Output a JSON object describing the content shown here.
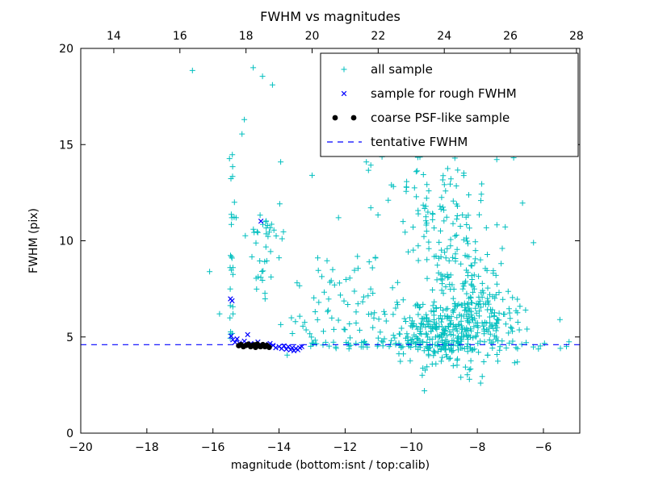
{
  "chart_data": {
    "type": "scatter",
    "title": "FWHM vs magnitudes",
    "xlabel": "magnitude (bottom:isnt / top:calib)",
    "ylabel": "FWHM (pix)",
    "xlim": [
      -20,
      -4.9
    ],
    "ylim": [
      0,
      20
    ],
    "x_ticks_bottom": [
      -20,
      -18,
      -16,
      -14,
      -12,
      -10,
      -8,
      -6
    ],
    "x_ticks_top": [
      14,
      16,
      18,
      20,
      22,
      24,
      26,
      28
    ],
    "calib_offset": 33,
    "y_ticks": [
      0,
      5,
      10,
      15,
      20
    ],
    "tentative_fwhm": 4.6,
    "legend_position": "upper right",
    "grid": false,
    "seed": 42,
    "colors": {
      "all_sample": "#00bfbf",
      "rough_fwhm": "#0000ff",
      "psf_like": "#000000",
      "tentative_line": "#0000ff",
      "frame": "#000000"
    },
    "series": [
      {
        "name": "all sample",
        "marker": "plus",
        "color": "#00bfbf",
        "clusters": [
          {
            "type": "gauss",
            "n": 240,
            "cx": -9.1,
            "sx": 0.85,
            "cy": 5.3,
            "sy": 0.7
          },
          {
            "type": "gauss",
            "n": 170,
            "cx": -8.2,
            "sx": 0.75,
            "cy": 6.3,
            "sy": 1.2
          },
          {
            "type": "gauss",
            "n": 90,
            "cx": -8.8,
            "sx": 0.8,
            "cy": 9.3,
            "sy": 1.6
          },
          {
            "type": "gauss",
            "n": 45,
            "cx": -9.2,
            "sx": 0.8,
            "cy": 12.3,
            "sy": 1.4
          },
          {
            "type": "gauss",
            "n": 22,
            "cx": -9.0,
            "sx": 1.0,
            "cy": 14.8,
            "sy": 1.1
          },
          {
            "type": "uniform",
            "n": 65,
            "x0": -13.4,
            "x1": -5.2,
            "y0": 4.35,
            "y1": 4.8
          },
          {
            "type": "uniform",
            "n": 16,
            "x0": -15.52,
            "x1": -15.38,
            "y0": 4.9,
            "y1": 9.6
          },
          {
            "type": "uniform",
            "n": 9,
            "x0": -15.5,
            "x1": -15.36,
            "y0": 9.8,
            "y1": 15.2
          },
          {
            "type": "gauss",
            "n": 28,
            "cx": -14.4,
            "sx": 0.28,
            "cy": 10.1,
            "sy": 0.9
          },
          {
            "type": "gauss",
            "n": 10,
            "cx": -14.55,
            "sx": 0.15,
            "cy": 8.3,
            "sy": 0.4
          },
          {
            "type": "uniform",
            "n": 55,
            "x0": -13.6,
            "x1": -10.4,
            "y0": 4.9,
            "y1": 9.2
          },
          {
            "type": "gauss",
            "n": 22,
            "cx": -12.6,
            "sx": 1.1,
            "cy": 6.1,
            "sy": 0.9
          },
          {
            "type": "gauss",
            "n": 24,
            "cx": -8.6,
            "sx": 1.1,
            "cy": 3.8,
            "sy": 0.5
          },
          {
            "type": "uniform",
            "n": 12,
            "x0": -10.2,
            "x1": -7.4,
            "y0": 15.2,
            "y1": 17.6
          },
          {
            "type": "uniform",
            "n": 8,
            "x0": -11.5,
            "x1": -9.0,
            "y0": 10.5,
            "y1": 14.5
          }
        ],
        "points": [
          [
            -16.62,
            18.85
          ],
          [
            -14.78,
            19.0
          ],
          [
            -14.5,
            18.55
          ],
          [
            -14.2,
            18.1
          ],
          [
            -13.95,
            14.1
          ],
          [
            -15.05,
            16.3
          ],
          [
            -15.12,
            15.55
          ],
          [
            -15.35,
            12.0
          ],
          [
            -15.3,
            11.2
          ],
          [
            -13.0,
            13.4
          ],
          [
            -11.4,
            16.0
          ],
          [
            -9.4,
            19.2
          ],
          [
            -8.9,
            18.6
          ],
          [
            -6.3,
            9.9
          ],
          [
            -5.5,
            5.9
          ],
          [
            -7.9,
            2.6
          ],
          [
            -8.5,
            2.9
          ],
          [
            -9.6,
            2.2
          ],
          [
            -16.1,
            8.4
          ],
          [
            -15.8,
            6.2
          ],
          [
            -10.6,
            12.9
          ],
          [
            -12.2,
            11.2
          ]
        ]
      },
      {
        "name": "sample for rough FWHM",
        "marker": "x",
        "color": "#0000ff",
        "points": [
          [
            -15.47,
            6.98
          ],
          [
            -15.42,
            6.88
          ],
          [
            -15.45,
            5.05
          ],
          [
            -15.4,
            4.85
          ],
          [
            -15.33,
            4.72
          ],
          [
            -15.27,
            4.9
          ],
          [
            -15.2,
            4.68
          ],
          [
            -15.05,
            4.78
          ],
          [
            -14.95,
            5.12
          ],
          [
            -14.85,
            4.66
          ],
          [
            -14.72,
            4.6
          ],
          [
            -14.64,
            4.74
          ],
          [
            -14.55,
            11.02
          ],
          [
            -14.5,
            4.56
          ],
          [
            -14.42,
            4.62
          ],
          [
            -14.34,
            4.5
          ],
          [
            -14.27,
            4.66
          ],
          [
            -14.18,
            4.56
          ],
          [
            -14.1,
            4.44
          ],
          [
            -14.0,
            4.5
          ],
          [
            -13.92,
            4.4
          ],
          [
            -13.85,
            4.54
          ],
          [
            -13.78,
            4.36
          ],
          [
            -13.72,
            4.5
          ],
          [
            -13.65,
            4.33
          ],
          [
            -13.6,
            4.44
          ],
          [
            -13.55,
            4.28
          ],
          [
            -13.49,
            4.4
          ],
          [
            -13.43,
            4.33
          ],
          [
            -13.37,
            4.44
          ],
          [
            -13.31,
            4.5
          ]
        ]
      },
      {
        "name": "coarse PSF-like sample",
        "marker": "circle",
        "color": "#000000",
        "points": [
          [
            -15.22,
            4.55
          ],
          [
            -15.15,
            4.6
          ],
          [
            -15.08,
            4.5
          ],
          [
            -15.0,
            4.56
          ],
          [
            -14.93,
            4.62
          ],
          [
            -14.86,
            4.5
          ],
          [
            -14.79,
            4.56
          ],
          [
            -14.71,
            4.46
          ],
          [
            -14.63,
            4.55
          ],
          [
            -14.56,
            4.5
          ],
          [
            -14.49,
            4.6
          ],
          [
            -14.43,
            4.5
          ],
          [
            -14.37,
            4.56
          ],
          [
            -14.3,
            4.46
          ],
          [
            -14.66,
            4.63
          ],
          [
            -14.76,
            4.59
          ]
        ]
      },
      {
        "name": "tentative FWHM",
        "marker": "dashed-line",
        "color": "#0000ff",
        "y": 4.6
      }
    ]
  },
  "legend": {
    "entries": [
      {
        "label": "all sample"
      },
      {
        "label": "sample for rough FWHM"
      },
      {
        "label": "coarse PSF-like sample"
      },
      {
        "label": "tentative FWHM"
      }
    ]
  }
}
